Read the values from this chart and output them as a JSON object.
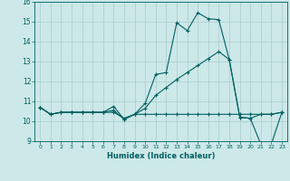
{
  "xlabel": "Humidex (Indice chaleur)",
  "xlim": [
    -0.5,
    23.5
  ],
  "ylim": [
    9,
    16
  ],
  "xticks": [
    0,
    1,
    2,
    3,
    4,
    5,
    6,
    7,
    8,
    9,
    10,
    11,
    12,
    13,
    14,
    15,
    16,
    17,
    18,
    19,
    20,
    21,
    22,
    23
  ],
  "yticks": [
    9,
    10,
    11,
    12,
    13,
    14,
    15,
    16
  ],
  "bg_color": "#cce8e8",
  "line_color": "#006060",
  "grid_color": "#aacccc",
  "line1_x": [
    0,
    1,
    2,
    3,
    4,
    5,
    6,
    7,
    8,
    9,
    10,
    11,
    12,
    13,
    14,
    15,
    16,
    17,
    18,
    19,
    20,
    21,
    22,
    23
  ],
  "line1_y": [
    10.7,
    10.35,
    10.45,
    10.45,
    10.45,
    10.45,
    10.45,
    10.45,
    10.15,
    10.35,
    10.9,
    12.35,
    12.45,
    14.95,
    14.55,
    15.45,
    15.15,
    15.1,
    13.1,
    10.2,
    10.15,
    8.85,
    8.85,
    10.45
  ],
  "line2_x": [
    0,
    1,
    2,
    3,
    4,
    5,
    6,
    7,
    8,
    9,
    10,
    11,
    12,
    13,
    14,
    15,
    16,
    17,
    18,
    19,
    20,
    21,
    22,
    23
  ],
  "line2_y": [
    10.7,
    10.35,
    10.45,
    10.45,
    10.45,
    10.45,
    10.45,
    10.75,
    10.1,
    10.35,
    10.35,
    10.35,
    10.35,
    10.35,
    10.35,
    10.35,
    10.35,
    10.35,
    10.35,
    10.35,
    10.35,
    10.35,
    10.35,
    10.45
  ],
  "line3_x": [
    0,
    1,
    2,
    3,
    4,
    5,
    6,
    7,
    8,
    9,
    10,
    11,
    12,
    13,
    14,
    15,
    16,
    17,
    18,
    19,
    20,
    21,
    22,
    23
  ],
  "line3_y": [
    10.7,
    10.35,
    10.45,
    10.45,
    10.45,
    10.45,
    10.45,
    10.55,
    10.1,
    10.35,
    10.65,
    11.3,
    11.7,
    12.1,
    12.45,
    12.8,
    13.15,
    13.5,
    13.1,
    10.2,
    10.15,
    10.35,
    10.35,
    10.45
  ]
}
